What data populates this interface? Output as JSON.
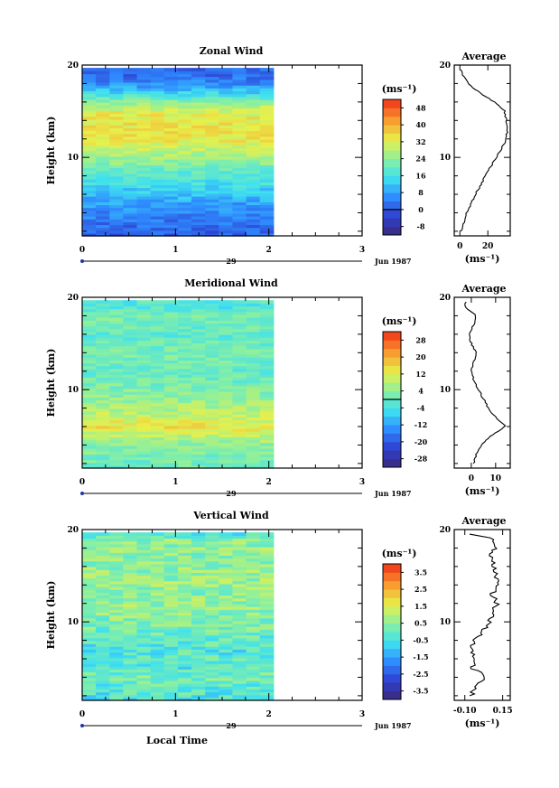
{
  "chart_data": [
    {
      "type": "heatmap",
      "title": "Zonal Wind",
      "ylabel": "Height (km)",
      "xlabel": "",
      "xticks": [
        "0",
        "1",
        "2",
        "3"
      ],
      "yticks": [
        "10",
        "20"
      ],
      "xlim": [
        0,
        3
      ],
      "ylim": [
        1.5,
        20
      ],
      "data_extent_hours": [
        0,
        2.05
      ],
      "date_label": "29",
      "month_label": "Jun 1987",
      "colorbar": {
        "unit": "(ms⁻¹)",
        "levels": [
          "-8",
          "0",
          "8",
          "16",
          "24",
          "32",
          "40",
          "48"
        ],
        "min": -12,
        "max": 52,
        "zero_line": 0
      },
      "profile": {
        "title": "Average",
        "xticks": [
          "0",
          "20"
        ],
        "xtick_values": [
          0,
          20
        ],
        "xlim": [
          -4,
          36
        ],
        "xlabel": "(ms⁻¹)",
        "yticks": [
          "10",
          "20"
        ],
        "heights": [
          2,
          3,
          4,
          5,
          6,
          7,
          8,
          9,
          10,
          11,
          12,
          13,
          14,
          15,
          16,
          17,
          18,
          19,
          19.5
        ],
        "values": [
          1,
          3,
          5,
          8,
          11,
          15,
          18,
          22,
          26,
          30,
          33,
          34,
          33,
          32,
          25,
          14,
          6,
          2,
          1
        ]
      }
    },
    {
      "type": "heatmap",
      "title": "Meridional Wind",
      "ylabel": "Height (km)",
      "xlabel": "",
      "xticks": [
        "0",
        "1",
        "2",
        "3"
      ],
      "yticks": [
        "10",
        "20"
      ],
      "xlim": [
        0,
        3
      ],
      "ylim": [
        1.5,
        20
      ],
      "data_extent_hours": [
        0,
        2.05
      ],
      "date_label": "29",
      "month_label": "Jun 1987",
      "colorbar": {
        "unit": "(ms⁻¹)",
        "levels": [
          "-28",
          "-20",
          "-12",
          "-4",
          "4",
          "12",
          "20",
          "28"
        ],
        "min": -32,
        "max": 32,
        "zero_line": 0
      },
      "profile": {
        "title": "Average",
        "xticks": [
          "0",
          "10"
        ],
        "xtick_values": [
          0,
          10
        ],
        "xlim": [
          -7,
          16
        ],
        "xlabel": "(ms⁻¹)",
        "yticks": [
          "10",
          "20"
        ],
        "heights": [
          2,
          3,
          4,
          5,
          6,
          7,
          8,
          9,
          10,
          11,
          12,
          13,
          14,
          15,
          16,
          17,
          18,
          19,
          19.5
        ],
        "values": [
          1,
          2,
          4,
          8,
          14,
          10,
          7,
          5,
          3,
          1,
          0,
          1,
          2,
          0,
          -1,
          1,
          2,
          -3,
          -2
        ]
      }
    },
    {
      "type": "heatmap",
      "title": "Vertical Wind",
      "ylabel": "Height (km)",
      "xlabel": "Local Time",
      "xticks": [
        "0",
        "1",
        "2",
        "3"
      ],
      "yticks": [
        "10",
        "20"
      ],
      "xlim": [
        0,
        3
      ],
      "ylim": [
        1.5,
        20
      ],
      "data_extent_hours": [
        0,
        2.05
      ],
      "date_label": "29",
      "month_label": "Jun 1987",
      "colorbar": {
        "unit": "(ms⁻¹)",
        "levels": [
          "-3.5",
          "-2.5",
          "-1.5",
          "-0.5",
          "0.5",
          "1.5",
          "2.5",
          "3.5"
        ],
        "min": -4,
        "max": 4,
        "zero_line": null
      },
      "profile": {
        "title": "Average",
        "xticks": [
          "-0.10",
          "0.15"
        ],
        "xtick_values": [
          -0.1,
          0.15
        ],
        "xlim": [
          -0.17,
          0.2
        ],
        "xlabel": "(ms⁻¹)",
        "yticks": [
          "10",
          "20"
        ],
        "heights": [
          2,
          3,
          4,
          5,
          6,
          7,
          8,
          9,
          10,
          11,
          12,
          13,
          14,
          15,
          16,
          17,
          18,
          19,
          19.5
        ],
        "values": [
          -0.06,
          -0.03,
          0.05,
          -0.05,
          -0.02,
          -0.06,
          -0.03,
          0.02,
          0.06,
          0.09,
          0.11,
          0.08,
          0.12,
          0.1,
          0.09,
          0.07,
          0.1,
          0.08,
          -0.05
        ]
      }
    }
  ]
}
